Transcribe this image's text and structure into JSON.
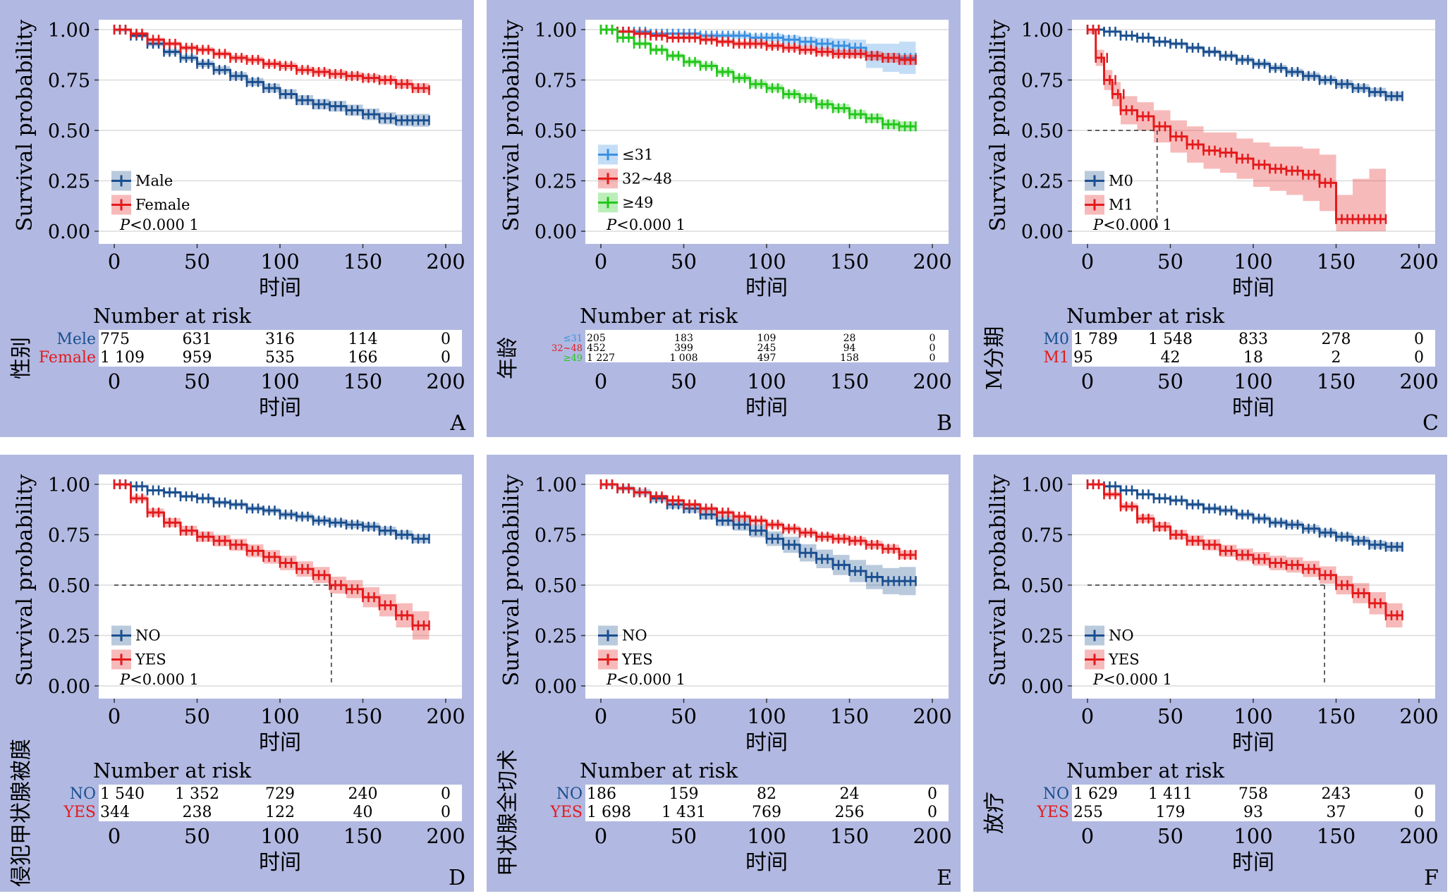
{
  "common": {
    "ylabel": "Survival probability",
    "xlabel": "时间",
    "risk_title": "Number at risk",
    "x_ticks": [
      "0",
      "50",
      "100",
      "150",
      "200"
    ],
    "y_ticks": [
      "0.00",
      "0.25",
      "0.50",
      "0.75",
      "1.00"
    ],
    "p_prefix": "P",
    "p_suffix": "<0.000 1"
  },
  "colors": {
    "panel_bg": "#b1b9e2",
    "plot_bg": "#ffffff",
    "grid": "#dcdcdc",
    "blue": "#1a4f8f",
    "red": "#e41a1c",
    "lightblue": "#3a8fe0",
    "green": "#22c71a"
  },
  "chart_data": [
    {
      "panel": "A",
      "type": "line",
      "risk_ylabel": "性别",
      "x": [
        0,
        10,
        20,
        30,
        40,
        50,
        60,
        70,
        80,
        90,
        100,
        110,
        120,
        130,
        140,
        150,
        160,
        170,
        180,
        190
      ],
      "xlim": [
        0,
        200
      ],
      "ylim": [
        0,
        1
      ],
      "median_x": null,
      "series": [
        {
          "name": "Male",
          "color": "blue",
          "risk_label": "Mele",
          "y": [
            1.0,
            0.97,
            0.93,
            0.89,
            0.86,
            0.83,
            0.8,
            0.77,
            0.74,
            0.71,
            0.68,
            0.65,
            0.63,
            0.62,
            0.6,
            0.58,
            0.56,
            0.55,
            0.55,
            0.55
          ],
          "ci": [
            0.01,
            0.01,
            0.012,
            0.014,
            0.015,
            0.016,
            0.018,
            0.019,
            0.02,
            0.022,
            0.024,
            0.025,
            0.026,
            0.027,
            0.028,
            0.029,
            0.03,
            0.03,
            0.032,
            0.033
          ]
        },
        {
          "name": "Female",
          "color": "red",
          "risk_label": "Female",
          "y": [
            1.0,
            0.98,
            0.95,
            0.93,
            0.91,
            0.9,
            0.88,
            0.86,
            0.85,
            0.83,
            0.82,
            0.8,
            0.79,
            0.78,
            0.77,
            0.76,
            0.75,
            0.73,
            0.71,
            0.7
          ],
          "ci": [
            0.005,
            0.008,
            0.01,
            0.011,
            0.012,
            0.013,
            0.013,
            0.014,
            0.015,
            0.015,
            0.016,
            0.016,
            0.017,
            0.018,
            0.018,
            0.019,
            0.02,
            0.022,
            0.024,
            0.025
          ]
        }
      ],
      "risk_table": [
        [
          "775",
          "631",
          "316",
          "114",
          "0"
        ],
        [
          "1 109",
          "959",
          "535",
          "166",
          "0"
        ]
      ]
    },
    {
      "panel": "B",
      "type": "line",
      "risk_ylabel": "年龄",
      "x": [
        0,
        10,
        20,
        30,
        40,
        50,
        60,
        70,
        80,
        90,
        100,
        110,
        120,
        130,
        140,
        150,
        160,
        170,
        180,
        190
      ],
      "xlim": [
        0,
        200
      ],
      "ylim": [
        0,
        1
      ],
      "median_x": null,
      "series": [
        {
          "name": "≤31",
          "color": "lightblue",
          "risk_label": "≤31",
          "y": [
            1.0,
            0.99,
            0.99,
            0.98,
            0.98,
            0.98,
            0.97,
            0.97,
            0.97,
            0.96,
            0.96,
            0.95,
            0.94,
            0.93,
            0.92,
            0.91,
            0.87,
            0.86,
            0.86,
            0.86
          ],
          "ci": [
            0.005,
            0.006,
            0.007,
            0.008,
            0.009,
            0.01,
            0.012,
            0.013,
            0.015,
            0.017,
            0.02,
            0.022,
            0.025,
            0.03,
            0.035,
            0.04,
            0.06,
            0.07,
            0.08,
            0.09
          ]
        },
        {
          "name": "32~48",
          "color": "red",
          "risk_label": "32~48",
          "y": [
            1.0,
            0.99,
            0.98,
            0.97,
            0.96,
            0.96,
            0.95,
            0.94,
            0.93,
            0.93,
            0.92,
            0.91,
            0.9,
            0.89,
            0.88,
            0.88,
            0.87,
            0.86,
            0.85,
            0.85
          ],
          "ci": [
            0.005,
            0.006,
            0.007,
            0.008,
            0.009,
            0.01,
            0.011,
            0.012,
            0.013,
            0.014,
            0.015,
            0.016,
            0.017,
            0.018,
            0.019,
            0.02,
            0.022,
            0.024,
            0.026,
            0.028
          ]
        },
        {
          "name": "≥49",
          "color": "green",
          "risk_label": "≥49",
          "y": [
            1.0,
            0.96,
            0.93,
            0.9,
            0.87,
            0.84,
            0.82,
            0.79,
            0.76,
            0.73,
            0.71,
            0.68,
            0.66,
            0.63,
            0.61,
            0.58,
            0.56,
            0.53,
            0.52,
            0.52
          ],
          "ci": [
            0.006,
            0.008,
            0.01,
            0.011,
            0.012,
            0.013,
            0.014,
            0.015,
            0.016,
            0.017,
            0.018,
            0.019,
            0.019,
            0.02,
            0.021,
            0.022,
            0.023,
            0.024,
            0.025,
            0.026
          ]
        }
      ],
      "risk_table": [
        [
          "205",
          "183",
          "109",
          "28",
          "0"
        ],
        [
          "452",
          "399",
          "245",
          "94",
          "0"
        ],
        [
          "1 227",
          "1 008",
          "497",
          "158",
          "0"
        ]
      ]
    },
    {
      "panel": "C",
      "type": "line",
      "risk_ylabel": "M分期",
      "x": [
        0,
        5,
        10,
        15,
        20,
        30,
        40,
        50,
        60,
        70,
        80,
        90,
        100,
        110,
        120,
        130,
        140,
        150,
        160,
        170,
        180,
        190
      ],
      "xlim": [
        0,
        200
      ],
      "ylim": [
        0,
        1
      ],
      "median_x": 42,
      "series": [
        {
          "name": "M0",
          "color": "blue",
          "risk_label": "M0",
          "x": [
            0,
            10,
            20,
            30,
            40,
            50,
            60,
            70,
            80,
            90,
            100,
            110,
            120,
            130,
            140,
            150,
            160,
            170,
            180,
            190
          ],
          "y": [
            1.0,
            0.99,
            0.97,
            0.96,
            0.94,
            0.93,
            0.91,
            0.89,
            0.87,
            0.85,
            0.83,
            0.81,
            0.79,
            0.77,
            0.75,
            0.73,
            0.71,
            0.69,
            0.67,
            0.67
          ],
          "ci": [
            0.004,
            0.005,
            0.006,
            0.007,
            0.008,
            0.009,
            0.01,
            0.011,
            0.012,
            0.013,
            0.014,
            0.015,
            0.016,
            0.017,
            0.018,
            0.019,
            0.02,
            0.021,
            0.022,
            0.023
          ]
        },
        {
          "name": "M1",
          "color": "red",
          "risk_label": "M1",
          "x": [
            0,
            5,
            10,
            15,
            20,
            30,
            40,
            50,
            60,
            70,
            80,
            90,
            100,
            110,
            120,
            130,
            140,
            150,
            160,
            170,
            180
          ],
          "y": [
            1.0,
            0.86,
            0.75,
            0.68,
            0.6,
            0.57,
            0.52,
            0.47,
            0.43,
            0.4,
            0.39,
            0.36,
            0.33,
            0.31,
            0.3,
            0.28,
            0.24,
            0.06,
            0.06,
            0.06,
            0.06
          ],
          "ci": [
            0.02,
            0.04,
            0.05,
            0.06,
            0.07,
            0.07,
            0.08,
            0.08,
            0.09,
            0.09,
            0.1,
            0.1,
            0.11,
            0.11,
            0.12,
            0.13,
            0.14,
            0.12,
            0.2,
            0.25,
            0.28
          ]
        }
      ],
      "risk_table": [
        [
          "1 789",
          "1 548",
          "833",
          "278",
          "0"
        ],
        [
          "95",
          "42",
          "18",
          "2",
          "0"
        ]
      ]
    },
    {
      "panel": "D",
      "type": "line",
      "risk_ylabel": "侵犯甲状腺被膜",
      "x": [
        0,
        10,
        20,
        30,
        40,
        50,
        60,
        70,
        80,
        90,
        100,
        110,
        120,
        130,
        140,
        150,
        160,
        170,
        180,
        190
      ],
      "xlim": [
        0,
        200
      ],
      "ylim": [
        0,
        1
      ],
      "median_x": 131,
      "series": [
        {
          "name": "NO",
          "color": "blue",
          "risk_label": "NO",
          "y": [
            1.0,
            0.99,
            0.97,
            0.96,
            0.94,
            0.93,
            0.91,
            0.9,
            0.88,
            0.87,
            0.85,
            0.84,
            0.82,
            0.81,
            0.8,
            0.79,
            0.77,
            0.75,
            0.73,
            0.73
          ],
          "ci": [
            0.004,
            0.005,
            0.006,
            0.007,
            0.008,
            0.009,
            0.01,
            0.011,
            0.012,
            0.013,
            0.014,
            0.015,
            0.016,
            0.017,
            0.018,
            0.019,
            0.02,
            0.021,
            0.022,
            0.023
          ]
        },
        {
          "name": "YES",
          "color": "red",
          "risk_label": "YES",
          "y": [
            1.0,
            0.93,
            0.86,
            0.81,
            0.77,
            0.74,
            0.72,
            0.7,
            0.67,
            0.64,
            0.61,
            0.58,
            0.55,
            0.5,
            0.48,
            0.44,
            0.4,
            0.35,
            0.3,
            0.3
          ],
          "ci": [
            0.01,
            0.015,
            0.02,
            0.022,
            0.024,
            0.026,
            0.028,
            0.03,
            0.032,
            0.034,
            0.036,
            0.038,
            0.04,
            0.042,
            0.045,
            0.05,
            0.055,
            0.06,
            0.07,
            0.08
          ]
        }
      ],
      "risk_table": [
        [
          "1 540",
          "1 352",
          "729",
          "240",
          "0"
        ],
        [
          "344",
          "238",
          "122",
          "40",
          "0"
        ]
      ]
    },
    {
      "panel": "E",
      "type": "line",
      "risk_ylabel": "甲状腺全切术",
      "x": [
        0,
        10,
        20,
        30,
        40,
        50,
        60,
        70,
        80,
        90,
        100,
        110,
        120,
        130,
        140,
        150,
        160,
        170,
        180,
        190
      ],
      "xlim": [
        0,
        200
      ],
      "ylim": [
        0,
        1
      ],
      "median_x": null,
      "series": [
        {
          "name": "NO",
          "color": "blue",
          "risk_label": "NO",
          "y": [
            1.0,
            0.98,
            0.96,
            0.93,
            0.9,
            0.88,
            0.85,
            0.82,
            0.8,
            0.77,
            0.73,
            0.7,
            0.66,
            0.63,
            0.6,
            0.57,
            0.54,
            0.52,
            0.52,
            0.52
          ],
          "ci": [
            0.01,
            0.012,
            0.015,
            0.018,
            0.02,
            0.022,
            0.025,
            0.028,
            0.03,
            0.033,
            0.036,
            0.04,
            0.043,
            0.046,
            0.05,
            0.055,
            0.06,
            0.065,
            0.07,
            0.07
          ]
        },
        {
          "name": "YES",
          "color": "red",
          "risk_label": "YES",
          "y": [
            1.0,
            0.98,
            0.96,
            0.94,
            0.92,
            0.9,
            0.88,
            0.86,
            0.84,
            0.82,
            0.8,
            0.78,
            0.76,
            0.74,
            0.73,
            0.72,
            0.7,
            0.68,
            0.65,
            0.65
          ],
          "ci": [
            0.004,
            0.005,
            0.006,
            0.007,
            0.008,
            0.009,
            0.01,
            0.011,
            0.012,
            0.013,
            0.014,
            0.015,
            0.016,
            0.017,
            0.018,
            0.019,
            0.02,
            0.021,
            0.022,
            0.023
          ]
        }
      ],
      "risk_table": [
        [
          "186",
          "159",
          "82",
          "24",
          "0"
        ],
        [
          "1 698",
          "1 431",
          "769",
          "256",
          "0"
        ]
      ]
    },
    {
      "panel": "F",
      "type": "line",
      "risk_ylabel": "放疗",
      "x": [
        0,
        10,
        20,
        30,
        40,
        50,
        60,
        70,
        80,
        90,
        100,
        110,
        120,
        130,
        140,
        150,
        160,
        170,
        180,
        190
      ],
      "xlim": [
        0,
        200
      ],
      "ylim": [
        0,
        1
      ],
      "median_x": 143,
      "series": [
        {
          "name": "NO",
          "color": "blue",
          "risk_label": "NO",
          "y": [
            1.0,
            0.99,
            0.97,
            0.95,
            0.93,
            0.92,
            0.9,
            0.88,
            0.87,
            0.85,
            0.83,
            0.81,
            0.8,
            0.78,
            0.76,
            0.74,
            0.72,
            0.7,
            0.69,
            0.69
          ],
          "ci": [
            0.004,
            0.005,
            0.006,
            0.007,
            0.008,
            0.009,
            0.01,
            0.011,
            0.012,
            0.013,
            0.014,
            0.015,
            0.016,
            0.017,
            0.018,
            0.019,
            0.02,
            0.021,
            0.022,
            0.023
          ]
        },
        {
          "name": "YES",
          "color": "red",
          "risk_label": "YES",
          "y": [
            1.0,
            0.95,
            0.89,
            0.83,
            0.79,
            0.75,
            0.72,
            0.7,
            0.67,
            0.65,
            0.63,
            0.61,
            0.6,
            0.58,
            0.55,
            0.5,
            0.46,
            0.41,
            0.35,
            0.35
          ],
          "ci": [
            0.008,
            0.012,
            0.016,
            0.02,
            0.022,
            0.024,
            0.026,
            0.028,
            0.03,
            0.032,
            0.034,
            0.036,
            0.038,
            0.04,
            0.043,
            0.046,
            0.05,
            0.055,
            0.06,
            0.065
          ]
        }
      ],
      "risk_table": [
        [
          "1 629",
          "1 411",
          "758",
          "243",
          "0"
        ],
        [
          "255",
          "179",
          "93",
          "37",
          "0"
        ]
      ]
    }
  ]
}
